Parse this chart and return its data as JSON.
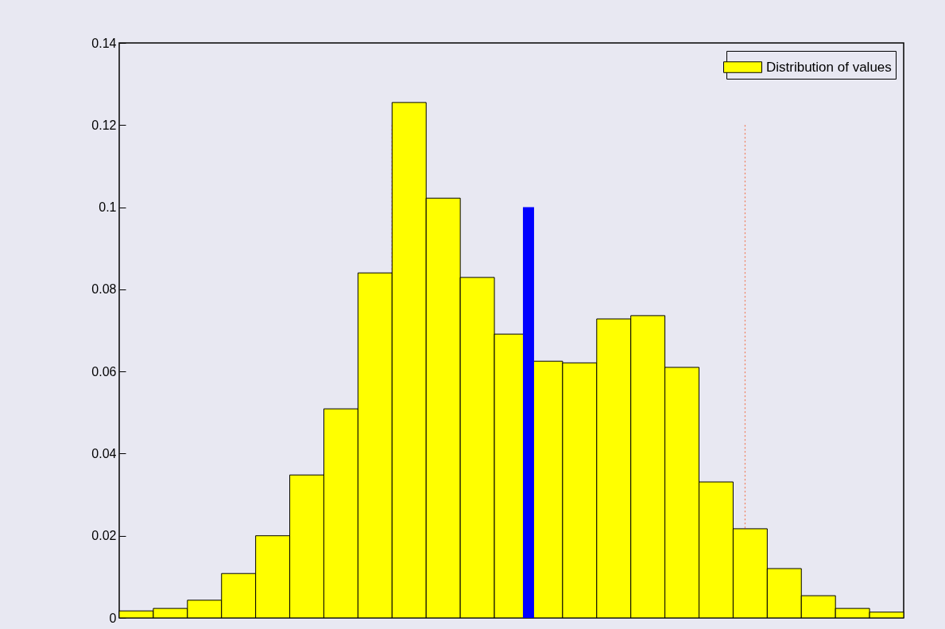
{
  "chart_data": {
    "type": "bar",
    "legend": "top right",
    "tick_labels": "y",
    "grid": false,
    "categories": [
      null,
      null,
      null,
      null,
      null,
      null,
      null,
      null,
      null,
      null,
      null,
      null,
      null,
      null,
      null,
      null,
      null,
      null,
      null,
      null,
      null,
      null,
      null
    ],
    "ylim": [
      0,
      0.14
    ],
    "yticks": [
      0,
      0.02,
      0.04,
      0.06,
      0.08,
      0.1,
      0.12,
      0.14
    ],
    "series": [
      {
        "name": "Distribution of values",
        "color": "#ffff00",
        "values": [
          0.0017,
          0.0023,
          0.0043,
          0.0108,
          0.02,
          0.0348,
          0.0509,
          0.084,
          0.1255,
          0.1022,
          0.0829,
          0.0691,
          0.0625,
          0.0621,
          0.0728,
          0.0736,
          0.061,
          0.0331,
          0.0217,
          0.012,
          0.0054,
          0.0023,
          0.0014
        ]
      }
    ]
  }
}
